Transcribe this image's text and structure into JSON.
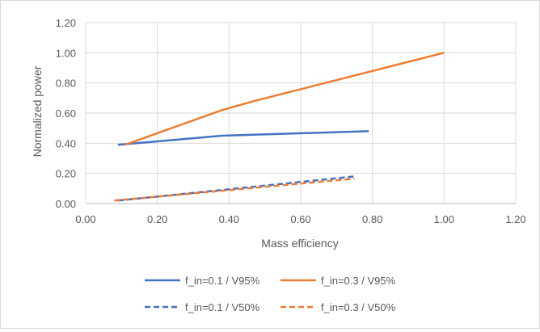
{
  "chart_data": {
    "type": "line",
    "title": "",
    "xlabel": "Mass efficiency",
    "ylabel": "Normalized power",
    "xlim": [
      0,
      1.2
    ],
    "ylim": [
      0,
      1.2
    ],
    "x_ticks": [
      "0.00",
      "0.20",
      "0.40",
      "0.60",
      "0.80",
      "1.00",
      "1.20"
    ],
    "y_ticks": [
      "0.00",
      "0.20",
      "0.40",
      "0.60",
      "0.80",
      "1.00",
      "1.20"
    ],
    "grid": true,
    "legend_position": "bottom",
    "series": [
      {
        "name": "f_in=0.1 / V95%",
        "color": "#4472c4",
        "dash": "solid",
        "points": [
          [
            0.09,
            0.39
          ],
          [
            0.38,
            0.45
          ],
          [
            0.79,
            0.48
          ]
        ]
      },
      {
        "name": "f_in=0.3 / V95%",
        "color": "#ed7d31",
        "dash": "solid",
        "points": [
          [
            0.11,
            0.39
          ],
          [
            0.38,
            0.62
          ],
          [
            0.47,
            0.68
          ],
          [
            1.0,
            1.0
          ]
        ]
      },
      {
        "name": "f_in=0.1 / V50%",
        "color": "#4472c4",
        "dash": "dashed",
        "points": [
          [
            0.09,
            0.02
          ],
          [
            0.38,
            0.09
          ],
          [
            0.75,
            0.18
          ]
        ]
      },
      {
        "name": "f_in=0.3 / V50%",
        "color": "#ed7d31",
        "dash": "dashed",
        "points": [
          [
            0.08,
            0.02
          ],
          [
            0.38,
            0.085
          ],
          [
            0.75,
            0.165
          ]
        ]
      }
    ]
  }
}
